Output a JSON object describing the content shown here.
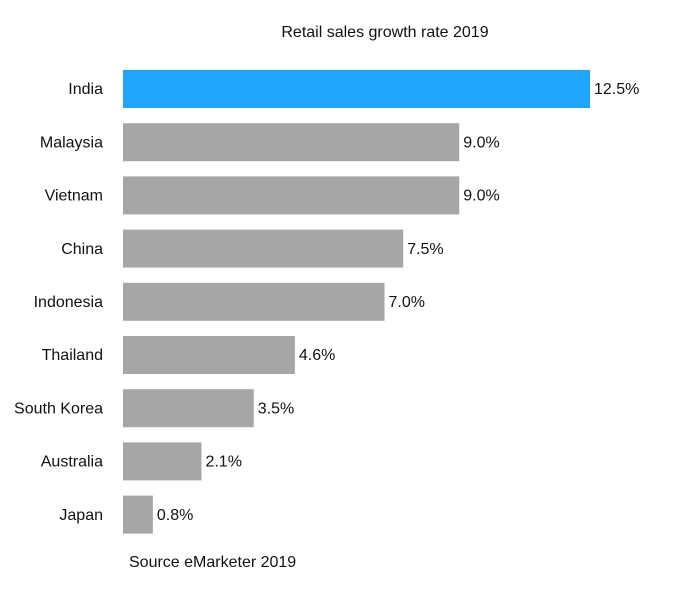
{
  "chart_data": {
    "type": "bar",
    "orientation": "horizontal",
    "title": "Retail sales growth rate 2019",
    "categories": [
      "India",
      "Malaysia",
      "Vietnam",
      "China",
      "Indonesia",
      "Thailand",
      "South Korea",
      "Australia",
      "Japan"
    ],
    "values": [
      12.5,
      9.0,
      9.0,
      7.5,
      7.0,
      4.6,
      3.5,
      2.1,
      0.8
    ],
    "value_labels": [
      "12.5%",
      "9.0%",
      "9.0%",
      "7.5%",
      "7.0%",
      "4.6%",
      "3.5%",
      "2.1%",
      "0.8%"
    ],
    "colors": [
      "#1ea5fc",
      "#a6a6a6",
      "#a6a6a6",
      "#a6a6a6",
      "#a6a6a6",
      "#a6a6a6",
      "#a6a6a6",
      "#a6a6a6",
      "#a6a6a6"
    ],
    "source": "Source eMarketer 2019"
  }
}
